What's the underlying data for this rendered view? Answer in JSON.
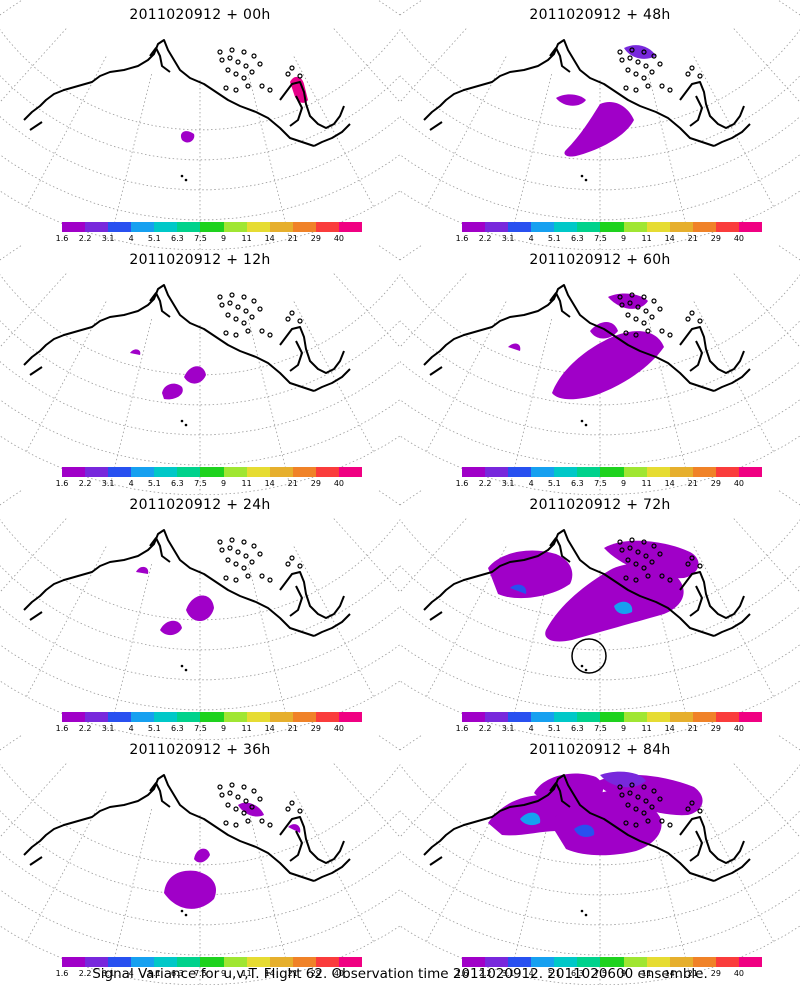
{
  "panels": [
    {
      "title": "2011020912 + 00h",
      "level": 0
    },
    {
      "title": "2011020912 + 48h",
      "level": 4
    },
    {
      "title": "2011020912 + 12h",
      "level": 1
    },
    {
      "title": "2011020912 + 60h",
      "level": 5
    },
    {
      "title": "2011020912 + 24h",
      "level": 2
    },
    {
      "title": "2011020912 + 72h",
      "level": 6,
      "circle": true
    },
    {
      "title": "2011020912 + 36h",
      "level": 3
    },
    {
      "title": "2011020912 + 84h",
      "level": 7
    }
  ],
  "colorbar": {
    "colors": [
      "#a000c8",
      "#7828dc",
      "#2850f0",
      "#16a0f0",
      "#00c8c8",
      "#00d28c",
      "#1ed21e",
      "#a0e632",
      "#e6dc32",
      "#e6af2d",
      "#f08228",
      "#fa3c3c",
      "#f00082"
    ],
    "labels": [
      "1.6",
      "2.2",
      "3.1",
      "4",
      "5.1",
      "6.3",
      "7.5",
      "9",
      "11",
      "14",
      "21",
      "29",
      "40"
    ]
  },
  "caption": "Signal Variance for u,v,T. Flight 62. Observation time 2011020912. 2011020600 ensemble."
}
